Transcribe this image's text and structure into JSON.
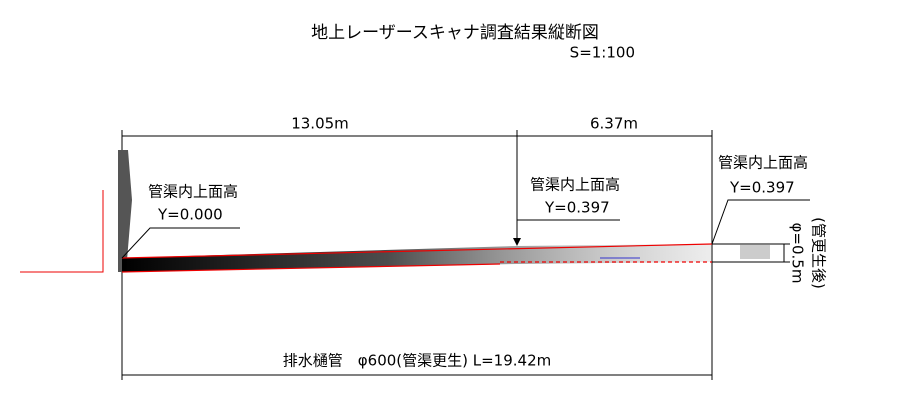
{
  "header": {
    "title": "地上レーザースキャナ調査結果縦断図",
    "scale": "S=1:100"
  },
  "dimensions": {
    "top": [
      "13.05m",
      "6.37m"
    ],
    "bottom": "排水樋管　φ600(管渠更生) L=19.42m"
  },
  "levels": [
    {
      "label": "管渠内上面高",
      "value": "Y=0.000"
    },
    {
      "label": "管渠内上面高",
      "value": "Y=0.397"
    },
    {
      "label": "管渠内上面高",
      "value": "Y=0.397"
    }
  ],
  "diameter": {
    "size": "φ=0.5m",
    "note": "(管更生後)"
  }
}
